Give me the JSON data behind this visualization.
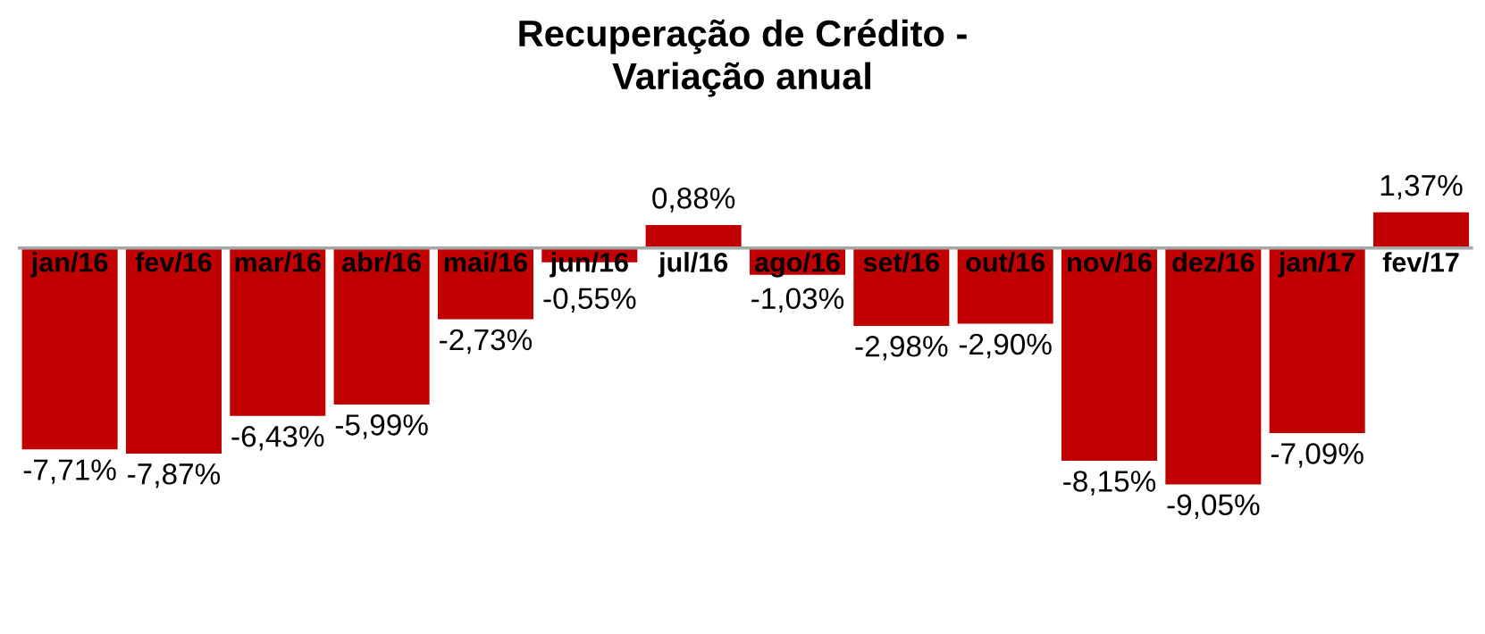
{
  "chart_data": {
    "type": "bar",
    "title": "Recuperação de Crédito -\nVariação anual",
    "categories": [
      "jan/16",
      "fev/16",
      "mar/16",
      "abr/16",
      "mai/16",
      "jun/16",
      "jul/16",
      "ago/16",
      "set/16",
      "out/16",
      "nov/16",
      "dez/16",
      "jan/17",
      "fev/17"
    ],
    "values": [
      -7.71,
      -7.87,
      -6.43,
      -5.99,
      -2.73,
      -0.55,
      0.88,
      -1.03,
      -2.98,
      -2.9,
      -8.15,
      -9.05,
      -7.09,
      1.37
    ],
    "value_labels": [
      "-7,71%",
      "-7,87%",
      "-6,43%",
      "-5,99%",
      "-2,73%",
      "-0,55%",
      "0,88%",
      "-1,03%",
      "-2,98%",
      "-2,90%",
      "-8,15%",
      "-9,05%",
      "-7,09%",
      "1,37%"
    ],
    "color": "#c00000"
  }
}
